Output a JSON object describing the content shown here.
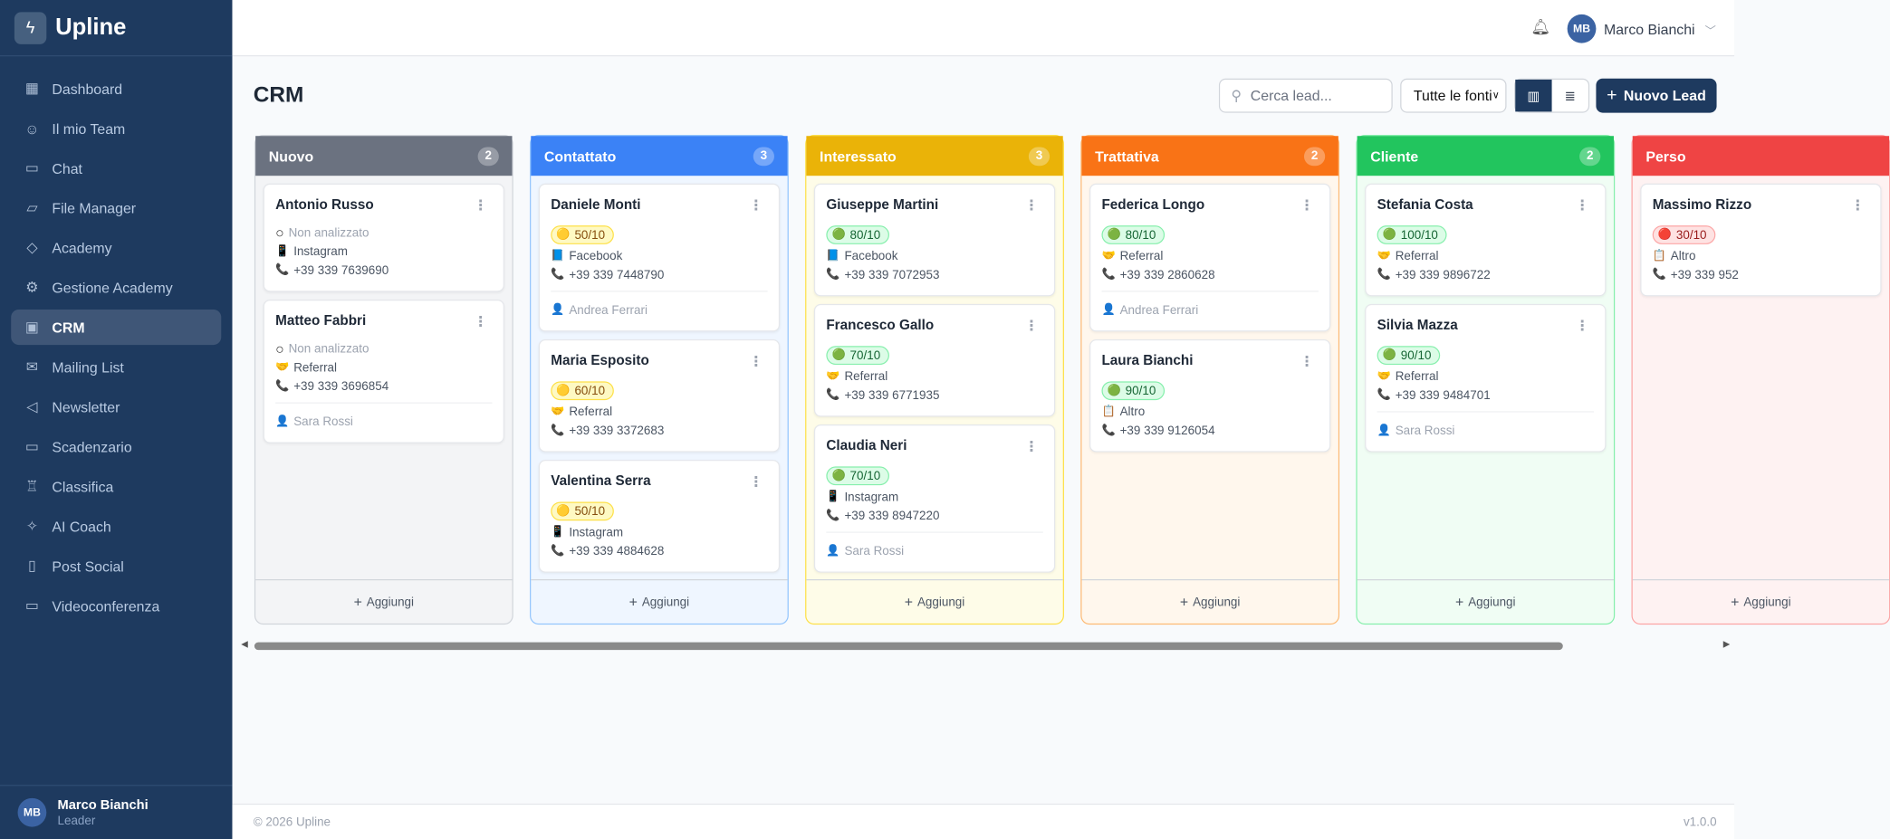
{
  "app": {
    "name": "Upline",
    "logo_icon": "bolt-icon"
  },
  "sidebar": {
    "items": [
      {
        "label": "Dashboard",
        "icon": "grid-icon",
        "glyph": "▦"
      },
      {
        "label": "Il mio Team",
        "icon": "users-icon",
        "glyph": "☺"
      },
      {
        "label": "Chat",
        "icon": "chat-icon",
        "glyph": "▭"
      },
      {
        "label": "File Manager",
        "icon": "folder-icon",
        "glyph": "▱"
      },
      {
        "label": "Academy",
        "icon": "graduation-cap-icon",
        "glyph": "◇"
      },
      {
        "label": "Gestione Academy",
        "icon": "gear-icon",
        "glyph": "⚙"
      },
      {
        "label": "CRM",
        "icon": "presentation-chart-icon",
        "glyph": "▣",
        "active": true
      },
      {
        "label": "Mailing List",
        "icon": "mail-icon",
        "glyph": "✉"
      },
      {
        "label": "Newsletter",
        "icon": "megaphone-icon",
        "glyph": "◁"
      },
      {
        "label": "Scadenzario",
        "icon": "calendar-icon",
        "glyph": "▭"
      },
      {
        "label": "Classifica",
        "icon": "trophy-icon",
        "glyph": "♖"
      },
      {
        "label": "AI Coach",
        "icon": "sparkles-icon",
        "glyph": "✧"
      },
      {
        "label": "Post Social",
        "icon": "phone-icon",
        "glyph": "▯"
      },
      {
        "label": "Videoconferenza",
        "icon": "video-icon",
        "glyph": "▭"
      }
    ],
    "user": {
      "initials": "MB",
      "name": "Marco Bianchi",
      "role": "Leader"
    }
  },
  "header": {
    "user_initials": "MB",
    "user_name": "Marco Bianchi"
  },
  "page": {
    "title": "CRM",
    "search_placeholder": "Cerca lead...",
    "source_filter": "Tutte le fonti",
    "new_lead": "Nuovo Lead",
    "add_label": "Aggiungi"
  },
  "colors": {
    "primary": "#1e3a5f"
  },
  "columns": [
    {
      "name": "Nuovo",
      "count": "2",
      "color": "#6b7280",
      "bg": "#f3f4f6",
      "border": "#d1d5db",
      "leads": [
        {
          "name": "Antonio Russo",
          "score": "Non analizzato",
          "level": "none",
          "source": "Instagram",
          "phone": "+39 339 7639690"
        },
        {
          "name": "Matteo Fabbri",
          "score": "Non analizzato",
          "level": "none",
          "source": "Referral",
          "phone": "+39 339 3696854",
          "assignee": "Sara Rossi"
        }
      ]
    },
    {
      "name": "Contattato",
      "count": "3",
      "color": "#3b82f6",
      "bg": "#eff6ff",
      "border": "#93c5fd",
      "leads": [
        {
          "name": "Daniele Monti",
          "score": "50/10",
          "level": "yellow",
          "source": "Facebook",
          "phone": "+39 339 7448790",
          "assignee": "Andrea Ferrari"
        },
        {
          "name": "Maria Esposito",
          "score": "60/10",
          "level": "yellow",
          "source": "Referral",
          "phone": "+39 339 3372683"
        },
        {
          "name": "Valentina Serra",
          "score": "50/10",
          "level": "yellow",
          "source": "Instagram",
          "phone": "+39 339 4884628"
        }
      ]
    },
    {
      "name": "Interessato",
      "count": "3",
      "color": "#eab308",
      "bg": "#fefce8",
      "border": "#fde047",
      "leads": [
        {
          "name": "Giuseppe Martini",
          "score": "80/10",
          "level": "green",
          "source": "Facebook",
          "phone": "+39 339 7072953"
        },
        {
          "name": "Francesco Gallo",
          "score": "70/10",
          "level": "green",
          "source": "Referral",
          "phone": "+39 339 6771935"
        },
        {
          "name": "Claudia Neri",
          "score": "70/10",
          "level": "green",
          "source": "Instagram",
          "phone": "+39 339 8947220",
          "assignee": "Sara Rossi"
        }
      ]
    },
    {
      "name": "Trattativa",
      "count": "2",
      "color": "#f97316",
      "bg": "#fff7ed",
      "border": "#fdba74",
      "leads": [
        {
          "name": "Federica Longo",
          "score": "80/10",
          "level": "green",
          "source": "Referral",
          "phone": "+39 339 2860628",
          "assignee": "Andrea Ferrari"
        },
        {
          "name": "Laura Bianchi",
          "score": "90/10",
          "level": "green",
          "source": "Altro",
          "phone": "+39 339 9126054"
        }
      ]
    },
    {
      "name": "Cliente",
      "count": "2",
      "color": "#22c55e",
      "bg": "#f0fdf4",
      "border": "#86efac",
      "leads": [
        {
          "name": "Stefania Costa",
          "score": "100/10",
          "level": "green",
          "source": "Referral",
          "phone": "+39 339 9896722"
        },
        {
          "name": "Silvia Mazza",
          "score": "90/10",
          "level": "green",
          "source": "Referral",
          "phone": "+39 339 9484701",
          "assignee": "Sara Rossi"
        }
      ]
    },
    {
      "name": "Perso",
      "count": "",
      "color": "#ef4444",
      "bg": "#fef2f2",
      "border": "#fca5a5",
      "leads": [
        {
          "name": "Massimo Rizzo",
          "score": "30/10",
          "level": "red",
          "source": "Altro",
          "phone": "+39 339 952"
        }
      ]
    }
  ],
  "footer": {
    "copyright": "© 2026 Upline",
    "version": "v1.0.0"
  }
}
